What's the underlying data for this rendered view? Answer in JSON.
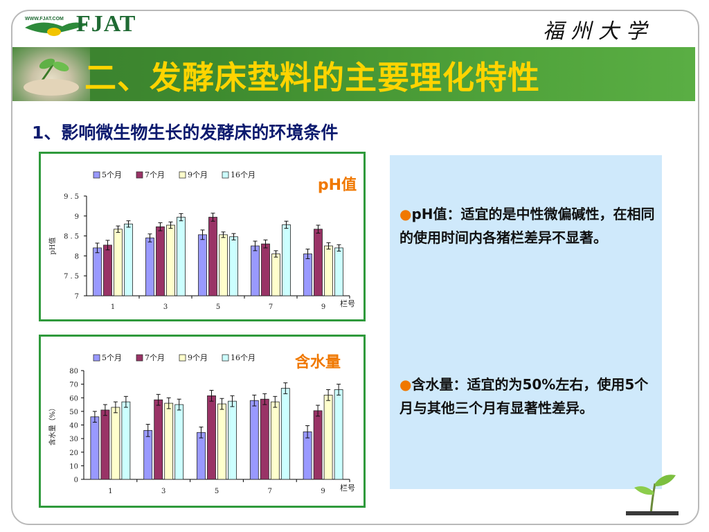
{
  "header": {
    "logo_text": "FJAT",
    "logo_url": "WWW.FJAT.COM",
    "university": "福州大学",
    "title": "二、发酵床垫料的主要理化特性"
  },
  "subtitle": "1、影响微生物生长的发酵床的环境条件",
  "chart_data": [
    {
      "type": "bar",
      "title": "pH值",
      "ylabel": "pH值",
      "xlabel": "栏号",
      "categories": [
        "1",
        "3",
        "5",
        "7",
        "9"
      ],
      "ylim": [
        7,
        9.5
      ],
      "yticks": [
        "7",
        "7.5",
        "8",
        "8.5",
        "9",
        "9.5"
      ],
      "legend_position": "top",
      "series": [
        {
          "name": "5个月",
          "values": [
            8.2,
            8.45,
            8.53,
            8.25,
            8.05
          ],
          "errors": [
            0.12,
            0.1,
            0.12,
            0.12,
            0.12
          ],
          "color": "#9999ff"
        },
        {
          "name": "7个月",
          "values": [
            8.27,
            8.73,
            8.97,
            8.3,
            8.67
          ],
          "errors": [
            0.12,
            0.1,
            0.1,
            0.1,
            0.1
          ],
          "color": "#993366"
        },
        {
          "name": "9个月",
          "values": [
            8.67,
            8.77,
            8.53,
            8.05,
            8.25
          ],
          "errors": [
            0.08,
            0.08,
            0.07,
            0.08,
            0.08
          ],
          "color": "#ffffcc"
        },
        {
          "name": "16个月",
          "values": [
            8.8,
            8.97,
            8.48,
            8.78,
            8.2
          ],
          "errors": [
            0.08,
            0.09,
            0.08,
            0.09,
            0.08
          ],
          "color": "#ccffff"
        }
      ]
    },
    {
      "type": "bar",
      "title": "含水量",
      "ylabel": "含水量（%）",
      "xlabel": "栏号",
      "categories": [
        "1",
        "3",
        "5",
        "7",
        "9"
      ],
      "ylim": [
        0,
        80
      ],
      "yticks": [
        "0",
        "10",
        "20",
        "30",
        "40",
        "50",
        "60",
        "70",
        "80"
      ],
      "legend_position": "top",
      "series": [
        {
          "name": "5个月",
          "values": [
            46,
            36,
            34.5,
            58,
            35
          ],
          "errors": [
            4,
            4.5,
            4,
            4,
            4.5
          ],
          "color": "#9999ff"
        },
        {
          "name": "7个月",
          "values": [
            51,
            58.5,
            61.5,
            59,
            50.5
          ],
          "errors": [
            4,
            4,
            4,
            4,
            4
          ],
          "color": "#993366"
        },
        {
          "name": "9个月",
          "values": [
            53,
            56,
            55.5,
            57,
            62
          ],
          "errors": [
            4,
            4,
            4,
            4,
            4
          ],
          "color": "#ffffcc"
        },
        {
          "name": "16个月",
          "values": [
            57,
            55,
            57.5,
            67,
            66
          ],
          "errors": [
            4,
            4,
            4,
            4,
            4
          ],
          "color": "#ccffff"
        }
      ]
    }
  ],
  "info": {
    "bullet": "●",
    "ph_text": "pH值：适宜的是中性微偏碱性，在相同的使用时间内各猪栏差异不显著。",
    "water_text": "含水量：适宜的为50%左右，使用5个月与其他三个月有显著性差异。"
  },
  "colors": {
    "accent_orange": "#f07800",
    "banner_green": "#3e8b2f",
    "title_yellow": "#ffd400",
    "subtitle_navy": "#0c1a6e",
    "chart_border": "#2f9a3c",
    "info_bg": "#cfe9fb"
  }
}
